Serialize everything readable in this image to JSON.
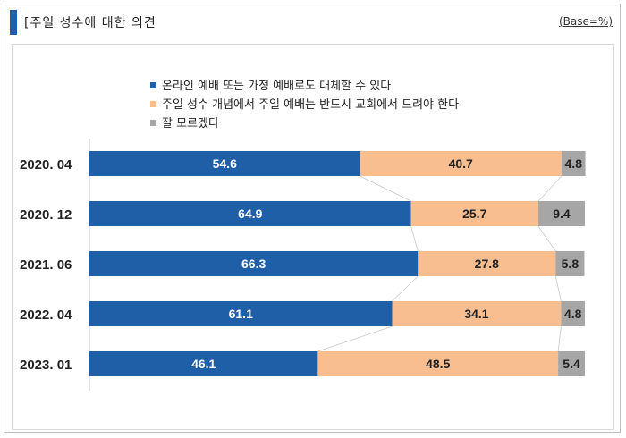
{
  "header": {
    "title": "[주일 성수에 대한 의견",
    "base_note": "(Base=%)"
  },
  "chart_data": {
    "type": "bar",
    "orientation": "horizontal",
    "stacked": true,
    "categories": [
      "2020. 04",
      "2020. 12",
      "2021. 06",
      "2022. 04",
      "2023. 01"
    ],
    "series": [
      {
        "name": "온라인 예배 또는 가정 예배로도 대체할 수 있다",
        "color": "#1f5fa8",
        "values": [
          54.6,
          64.9,
          66.3,
          61.1,
          46.1
        ]
      },
      {
        "name": "주일 성수 개념에서 주일 예배는 반드시 교회에서 드려야 한다",
        "color": "#f8be90",
        "values": [
          40.7,
          25.7,
          27.8,
          34.1,
          48.5
        ]
      },
      {
        "name": "잘 모르겠다",
        "color": "#a6a6a6",
        "values": [
          4.8,
          9.4,
          5.8,
          4.8,
          5.4
        ]
      }
    ],
    "xlim": [
      0,
      100
    ],
    "legend_position": "top"
  }
}
